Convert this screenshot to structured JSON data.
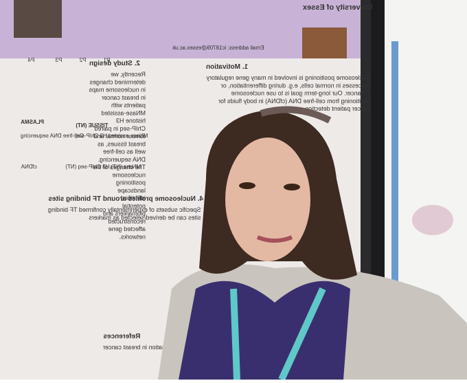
{
  "poster": {
    "header": {
      "university": "University of Essex",
      "email": "Email address: ic18709@essex.ac.uk"
    },
    "sections": [
      {
        "title": "1. Motivation",
        "body": "Nucleosome positioning is involved in many gene regulatory processes in normal cells, e.g. during differentiation, or in cancer. Our long-term goal is to use nucleosome positioning from cell-free DNA (cfDNA) in body fluids for cancer patient detection."
      },
      {
        "title": "2. Study design",
        "body": "Recently, we determined changes in nucleosome maps in breast cancer patients with MNase-assisted histone H3 ChIP-seq in paired tumour normal and breast tissues, as well as cell-free DNA sequencing. The changes of the nucleosome positioning landscape identified potential biomarkers and reconstructed affected gene networks."
      },
      {
        "title": "4. Nucleosome profiles around TF binding sites",
        "body": "Specific subsets of experimentally confirmed TF binding sites can be derived/selected as markers"
      },
      {
        "title": "References",
        "body": "Nucleosome reorganisation in breast cancer"
      }
    ],
    "labels": [
      "PLASMA",
      "TISSUE (NT)",
      "Cell-free DNA sequencing",
      "MNase-assisted H3 ChIP-seq",
      "cfDNA",
      "MNase (NT) H3 ChIP-seq (NT)",
      "P4",
      "P3",
      "P2",
      "P1"
    ]
  }
}
